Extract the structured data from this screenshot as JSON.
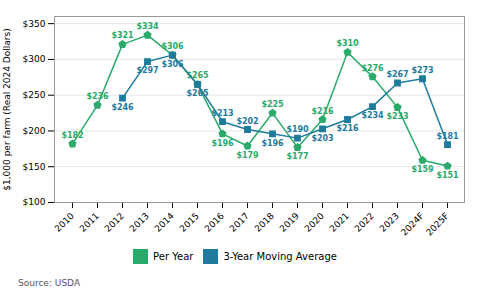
{
  "chart_data": {
    "type": "line",
    "categories": [
      "2010",
      "2011",
      "2012",
      "2013",
      "2014",
      "2015",
      "2016",
      "2017",
      "2018",
      "2019",
      "2020",
      "2021",
      "2022",
      "2023",
      "2024F",
      "2025F"
    ],
    "series": [
      {
        "name": "Per Year",
        "color": "#2aaa6a",
        "marker": "pentagon",
        "values": [
          182,
          236,
          321,
          334,
          306,
          265,
          196,
          179,
          225,
          177,
          216,
          310,
          276,
          233,
          159,
          151
        ],
        "value_labels": [
          "$182",
          "$236",
          "$321",
          "$334",
          "$306",
          "$265",
          "$196",
          "$179",
          "$225",
          "$177",
          "$216",
          "$310",
          "$276",
          "$233",
          "$159",
          "$151"
        ]
      },
      {
        "name": "3-Year Moving Average",
        "color": "#1e7b9b",
        "marker": "square",
        "values": [
          null,
          null,
          246,
          297,
          306,
          265,
          213,
          202,
          196,
          190,
          203,
          216,
          234,
          267,
          273,
          181
        ],
        "value_labels": [
          null,
          null,
          "$246",
          "$297",
          "$306",
          "$265",
          "$213",
          "$202",
          "$196",
          "$190",
          "$203",
          "$216",
          "$234",
          "$267",
          "$273",
          "$181"
        ]
      }
    ],
    "y_label": "$1,000 per farm (Real 2024 Dollars)",
    "ylim": [
      100,
      360
    ],
    "yticks": [
      {
        "value": 100,
        "label": "$100"
      },
      {
        "value": 150,
        "label": "$150"
      },
      {
        "value": 200,
        "label": "$200"
      },
      {
        "value": 250,
        "label": "$250"
      },
      {
        "value": 300,
        "label": "$300"
      },
      {
        "value": 350,
        "label": "$350"
      }
    ],
    "grid": true,
    "data_labels": true,
    "legend": "bottom",
    "caption": "Source: USDA"
  }
}
